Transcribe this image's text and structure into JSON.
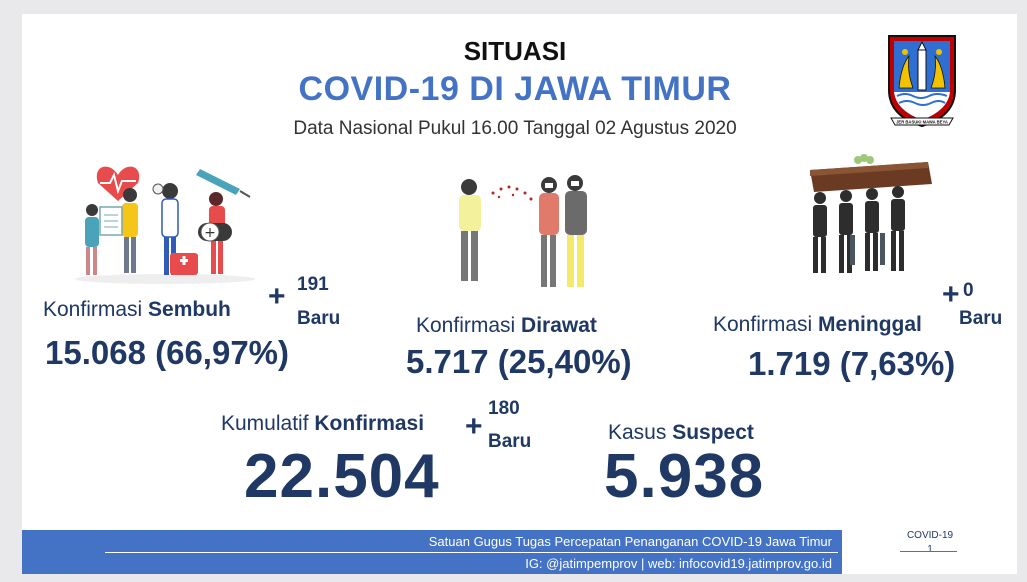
{
  "header": {
    "situasi": "SITUASI",
    "title": "COVID-19 DI JAWA TIMUR",
    "subtitle": "Data Nasional Pukul 16.00 Tanggal 02 Agustus 2020"
  },
  "recovered": {
    "label_prefix": "Konfirmasi ",
    "label_bold": "Sembuh",
    "plus": "+",
    "new_count": "191",
    "new_label": "Baru",
    "value": "15.068 (66,97%)"
  },
  "treated": {
    "label_prefix": "Konfirmasi ",
    "label_bold": "Dirawat",
    "value": "5.717 (25,40%)"
  },
  "deaths": {
    "label_prefix": "Konfirmasi ",
    "label_bold": "Meninggal",
    "plus": "+",
    "new_count": "0",
    "new_label": "Baru",
    "value": "1.719 (7,63%)"
  },
  "cumulative": {
    "label_prefix": "Kumulatif ",
    "label_bold": "Konfirmasi",
    "plus": "+",
    "new_count": "180",
    "new_label": "Baru",
    "value": "22.504"
  },
  "suspect": {
    "label_prefix": "Kasus ",
    "label_bold": "Suspect",
    "value": "5.938"
  },
  "footer": {
    "line1": "Satuan Gugus Tugas Percepatan Penanganan COVID-19 Jawa Timur",
    "line2": "IG: @jatimpemprov | web: infocovid19.jatimprov.go.id",
    "side_label": "COVID-19",
    "page_number": "1"
  },
  "logo": {
    "banner_text": "JER BASUKI MAWA BEYA"
  },
  "colors": {
    "accent_blue": "#4472c4",
    "navy_text": "#1f3864",
    "logo_red": "#c00000",
    "logo_yellow": "#f2c200"
  }
}
